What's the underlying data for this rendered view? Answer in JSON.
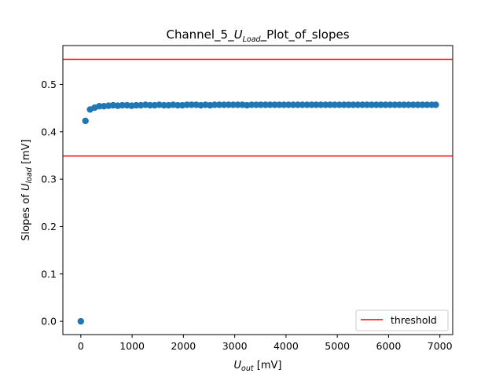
{
  "chart_data": {
    "type": "scatter",
    "title": {
      "pre": "Channel_5_",
      "var": "U",
      "sub": "Load",
      "post": "_Plot_of_slopes"
    },
    "xlabel": {
      "var": "U",
      "sub": "out",
      "unit": " [mV]"
    },
    "ylabel": {
      "pre": "Slopes of ",
      "var": "U",
      "sub": "load",
      "unit": " [mV]"
    },
    "xlim": [
      -350,
      7250
    ],
    "ylim": [
      -0.028,
      0.582
    ],
    "xticks": [
      0,
      1000,
      2000,
      3000,
      4000,
      5000,
      6000,
      7000
    ],
    "yticks": [
      0.0,
      0.1,
      0.2,
      0.3,
      0.4,
      0.5
    ],
    "xtick_labels": [
      "0",
      "1000",
      "2000",
      "3000",
      "4000",
      "5000",
      "6000",
      "7000"
    ],
    "ytick_labels": [
      "0.0",
      "0.1",
      "0.2",
      "0.3",
      "0.4",
      "0.5"
    ],
    "grid": false,
    "legend": {
      "position": "bottom-right",
      "entries": [
        "threshold"
      ]
    },
    "thresholds": [
      0.553,
      0.349
    ],
    "colors": {
      "points": "#1f77b4",
      "threshold": "#ff0000"
    },
    "points": {
      "x": [
        0,
        90,
        180,
        270,
        360,
        450,
        540,
        630,
        720,
        810,
        900,
        990,
        1080,
        1170,
        1260,
        1350,
        1440,
        1530,
        1620,
        1710,
        1800,
        1890,
        1980,
        2070,
        2160,
        2250,
        2340,
        2430,
        2520,
        2610,
        2700,
        2790,
        2880,
        2970,
        3060,
        3150,
        3240,
        3330,
        3420,
        3510,
        3600,
        3690,
        3780,
        3870,
        3960,
        4050,
        4140,
        4230,
        4320,
        4410,
        4500,
        4590,
        4680,
        4770,
        4860,
        4950,
        5040,
        5130,
        5220,
        5310,
        5400,
        5490,
        5580,
        5670,
        5760,
        5850,
        5940,
        6030,
        6120,
        6210,
        6300,
        6390,
        6480,
        6570,
        6660,
        6750,
        6840,
        6920
      ],
      "y": [
        0.0,
        0.423,
        0.447,
        0.451,
        0.454,
        0.454,
        0.455,
        0.456,
        0.455,
        0.456,
        0.456,
        0.455,
        0.456,
        0.456,
        0.457,
        0.456,
        0.456,
        0.457,
        0.456,
        0.456,
        0.457,
        0.456,
        0.456,
        0.457,
        0.457,
        0.457,
        0.456,
        0.457,
        0.456,
        0.457,
        0.457,
        0.457,
        0.457,
        0.457,
        0.457,
        0.457,
        0.456,
        0.457,
        0.457,
        0.457,
        0.457,
        0.457,
        0.457,
        0.457,
        0.457,
        0.457,
        0.457,
        0.457,
        0.457,
        0.457,
        0.457,
        0.457,
        0.457,
        0.457,
        0.457,
        0.457,
        0.457,
        0.457,
        0.457,
        0.457,
        0.457,
        0.457,
        0.457,
        0.457,
        0.457,
        0.457,
        0.457,
        0.457,
        0.457,
        0.457,
        0.457,
        0.457,
        0.457,
        0.457,
        0.457,
        0.457,
        0.457,
        0.457
      ]
    }
  }
}
